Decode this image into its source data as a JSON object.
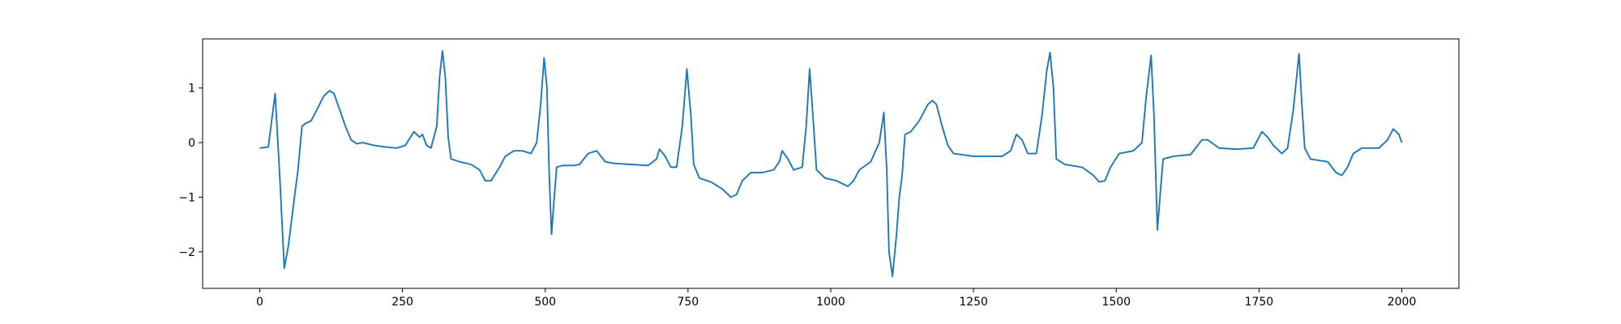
{
  "chart_data": {
    "type": "line",
    "x": [
      0,
      15,
      27,
      35,
      43,
      50,
      56,
      62,
      67,
      74,
      80,
      90,
      100,
      112,
      122,
      130,
      140,
      150,
      160,
      170,
      180,
      200,
      220,
      240,
      255,
      270,
      280,
      285,
      292,
      300,
      310,
      315,
      320,
      325,
      330,
      335,
      350,
      370,
      385,
      395,
      405,
      420,
      430,
      445,
      460,
      475,
      485,
      492,
      498,
      503,
      507,
      511,
      515,
      520,
      530,
      550,
      560,
      575,
      590,
      605,
      620,
      650,
      680,
      695,
      700,
      710,
      720,
      730,
      740,
      748,
      755,
      760,
      770,
      790,
      810,
      825,
      835,
      845,
      860,
      880,
      900,
      910,
      915,
      925,
      935,
      950,
      957,
      963,
      970,
      975,
      990,
      1010,
      1030,
      1040,
      1050,
      1070,
      1085,
      1093,
      1098,
      1102,
      1108,
      1115,
      1120,
      1125,
      1130,
      1140,
      1155,
      1170,
      1178,
      1185,
      1195,
      1205,
      1215,
      1250,
      1300,
      1315,
      1325,
      1335,
      1345,
      1360,
      1370,
      1378,
      1384,
      1390,
      1395,
      1410,
      1440,
      1460,
      1470,
      1480,
      1490,
      1505,
      1530,
      1545,
      1552,
      1561,
      1566,
      1572,
      1578,
      1582,
      1600,
      1630,
      1650,
      1660,
      1680,
      1710,
      1740,
      1755,
      1765,
      1775,
      1790,
      1800,
      1810,
      1820,
      1825,
      1830,
      1840,
      1870,
      1885,
      1895,
      1905,
      1915,
      1930,
      1960,
      1975,
      1985,
      1995,
      2000
    ],
    "series": [
      {
        "color": "#1f77b4",
        "values": [
          -0.1,
          -0.08,
          0.9,
          -0.6,
          -2.3,
          -1.9,
          -1.4,
          -0.9,
          -0.5,
          0.3,
          0.35,
          0.4,
          0.6,
          0.85,
          0.95,
          0.9,
          0.6,
          0.3,
          0.05,
          -0.02,
          0,
          -0.05,
          -0.08,
          -0.1,
          -0.05,
          0.2,
          0.1,
          0.15,
          -0.05,
          -0.1,
          0.3,
          1.2,
          1.68,
          1.2,
          0.1,
          -0.3,
          -0.35,
          -0.4,
          -0.5,
          -0.7,
          -0.7,
          -0.45,
          -0.25,
          -0.15,
          -0.15,
          -0.2,
          0,
          0.7,
          1.55,
          1.0,
          -0.6,
          -1.68,
          -1.1,
          -0.45,
          -0.42,
          -0.42,
          -0.4,
          -0.2,
          -0.15,
          -0.35,
          -0.38,
          -0.4,
          -0.42,
          -0.3,
          -0.12,
          -0.25,
          -0.45,
          -0.45,
          0.3,
          1.35,
          0.5,
          -0.4,
          -0.65,
          -0.72,
          -0.85,
          -1.0,
          -0.95,
          -0.7,
          -0.55,
          -0.55,
          -0.5,
          -0.35,
          -0.15,
          -0.3,
          -0.5,
          -0.45,
          0.3,
          1.35,
          0.3,
          -0.5,
          -0.65,
          -0.7,
          -0.8,
          -0.7,
          -0.5,
          -0.35,
          0,
          0.55,
          -0.5,
          -2.0,
          -2.45,
          -1.7,
          -1.0,
          -0.6,
          0.15,
          0.2,
          0.4,
          0.7,
          0.77,
          0.7,
          0.3,
          -0.05,
          -0.2,
          -0.25,
          -0.25,
          -0.15,
          0.15,
          0.05,
          -0.2,
          -0.2,
          0.5,
          1.3,
          1.65,
          1.0,
          -0.3,
          -0.4,
          -0.45,
          -0.6,
          -0.72,
          -0.7,
          -0.45,
          -0.2,
          -0.15,
          0,
          0.8,
          1.6,
          0.5,
          -1.6,
          -0.8,
          -0.3,
          -0.25,
          -0.22,
          0.05,
          0.05,
          -0.1,
          -0.12,
          -0.1,
          0.2,
          0.1,
          -0.05,
          -0.2,
          -0.1,
          0.6,
          1.63,
          0.7,
          -0.1,
          -0.3,
          -0.35,
          -0.55,
          -0.6,
          -0.45,
          -0.2,
          -0.1,
          -0.1,
          0.05,
          0.25,
          0.15,
          0
        ]
      }
    ],
    "xlim": [
      -100,
      2100
    ],
    "ylim": [
      -2.67,
      1.9
    ],
    "xticks": [
      0,
      250,
      500,
      750,
      1000,
      1250,
      1500,
      1750,
      2000
    ],
    "yticks": [
      {
        "value": -2,
        "label": "−2"
      },
      {
        "value": -1,
        "label": "−1"
      },
      0,
      1
    ]
  }
}
